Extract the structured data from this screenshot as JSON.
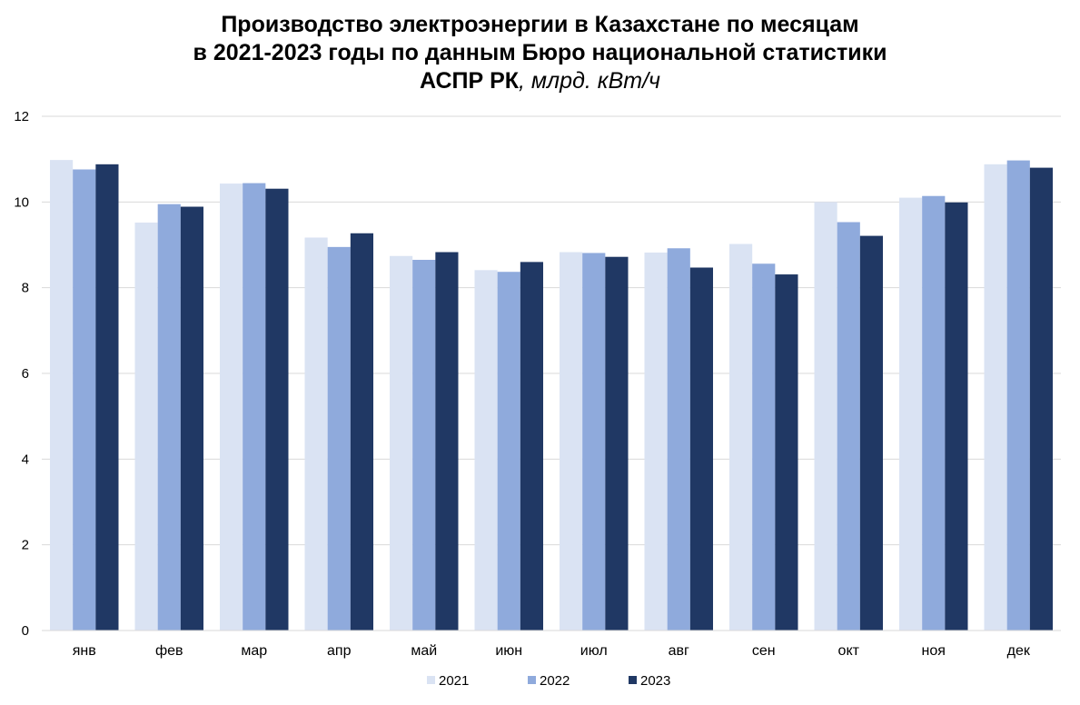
{
  "chart_data": {
    "type": "bar",
    "title_line1": "Производство электроэнергии в Казахстане по месяцам",
    "title_line2": "в 2021-2023 годы по данным Бюро национальной статистики",
    "title_line3_bold": "АСПР РК",
    "title_line3_italic": ", млрд. кВт/ч",
    "xlabel": "",
    "ylabel": "",
    "ylim": [
      0,
      12
    ],
    "yticks": [
      0,
      2,
      4,
      6,
      8,
      10,
      12
    ],
    "grid": true,
    "legend_position": "bottom",
    "categories": [
      "янв",
      "фев",
      "мар",
      "апр",
      "май",
      "июн",
      "июл",
      "авг",
      "сен",
      "окт",
      "ноя",
      "дек"
    ],
    "series": [
      {
        "name": "2021",
        "color": "#dae3f3",
        "values": [
          10.98,
          9.52,
          10.43,
          9.17,
          8.74,
          8.41,
          8.83,
          8.82,
          9.02,
          10.0,
          10.1,
          10.88
        ]
      },
      {
        "name": "2022",
        "color": "#8faadc",
        "values": [
          10.76,
          9.95,
          10.44,
          8.95,
          8.65,
          8.37,
          8.81,
          8.92,
          8.56,
          9.53,
          10.14,
          10.97
        ]
      },
      {
        "name": "2023",
        "color": "#203864",
        "values": [
          10.88,
          9.89,
          10.31,
          9.27,
          8.83,
          8.6,
          8.72,
          8.47,
          8.31,
          9.21,
          9.99,
          10.8
        ]
      }
    ]
  }
}
